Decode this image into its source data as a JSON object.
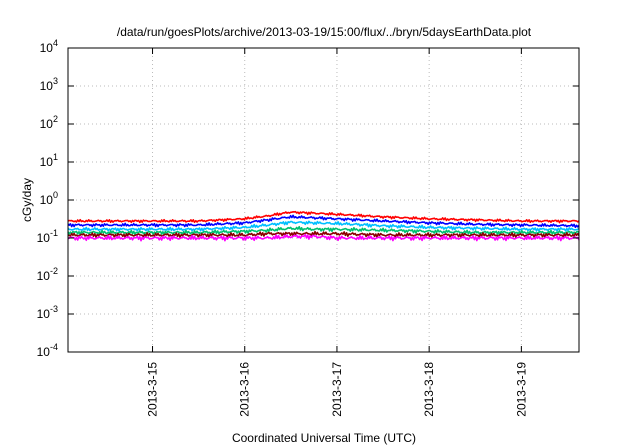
{
  "chart_data": {
    "type": "line",
    "title": "/data/run/goesPlots/archive/2013-03-19/15:00/flux/../bryn/5daysEarthData.plot",
    "xlabel": "Coordinated Universal Time (UTC)",
    "ylabel": "cGy/day",
    "yscale": "log",
    "ylim": [
      0.0001,
      10000
    ],
    "xlim": [
      "2013-03-14T02:00",
      "2013-03-19T15:00"
    ],
    "y_ticks": [
      {
        "base": "10",
        "exp": "4",
        "value": 10000
      },
      {
        "base": "10",
        "exp": "3",
        "value": 1000
      },
      {
        "base": "10",
        "exp": "2",
        "value": 100
      },
      {
        "base": "10",
        "exp": "1",
        "value": 10
      },
      {
        "base": "10",
        "exp": "0",
        "value": 1
      },
      {
        "base": "10",
        "exp": "-1",
        "value": 0.1
      },
      {
        "base": "10",
        "exp": "-2",
        "value": 0.01
      },
      {
        "base": "10",
        "exp": "-3",
        "value": 0.001
      },
      {
        "base": "10",
        "exp": "-4",
        "value": 0.0001
      }
    ],
    "x_ticks": [
      {
        "label": "2013-3-15",
        "value": "2013-03-15T00:00"
      },
      {
        "label": "2013-3-16",
        "value": "2013-03-16T00:00"
      },
      {
        "label": "2013-3-17",
        "value": "2013-03-17T00:00"
      },
      {
        "label": "2013-3-18",
        "value": "2013-03-18T00:00"
      },
      {
        "label": "2013-3-19",
        "value": "2013-03-19T00:00"
      }
    ],
    "grid": true,
    "series": [
      {
        "color": "#ff0000",
        "x": [
          "2013-03-14T02:00",
          "2013-03-14T12:00",
          "2013-03-15T00:00",
          "2013-03-15T12:00",
          "2013-03-16T00:00",
          "2013-03-16T06:00",
          "2013-03-16T12:00",
          "2013-03-16T18:00",
          "2013-03-17T00:00",
          "2013-03-17T12:00",
          "2013-03-18T00:00",
          "2013-03-18T12:00",
          "2013-03-19T00:00",
          "2013-03-19T15:00"
        ],
        "values": [
          0.28,
          0.28,
          0.28,
          0.28,
          0.32,
          0.38,
          0.48,
          0.45,
          0.42,
          0.36,
          0.32,
          0.3,
          0.28,
          0.28
        ]
      },
      {
        "color": "#0000ff",
        "x": [
          "2013-03-14T02:00",
          "2013-03-14T12:00",
          "2013-03-15T00:00",
          "2013-03-15T12:00",
          "2013-03-16T00:00",
          "2013-03-16T06:00",
          "2013-03-16T12:00",
          "2013-03-16T18:00",
          "2013-03-17T00:00",
          "2013-03-17T12:00",
          "2013-03-18T00:00",
          "2013-03-18T12:00",
          "2013-03-19T00:00",
          "2013-03-19T15:00"
        ],
        "values": [
          0.22,
          0.22,
          0.22,
          0.22,
          0.25,
          0.3,
          0.36,
          0.34,
          0.32,
          0.28,
          0.25,
          0.23,
          0.22,
          0.21
        ]
      },
      {
        "color": "#00bfff",
        "x": [
          "2013-03-14T02:00",
          "2013-03-14T12:00",
          "2013-03-15T00:00",
          "2013-03-15T12:00",
          "2013-03-16T00:00",
          "2013-03-16T06:00",
          "2013-03-16T12:00",
          "2013-03-16T18:00",
          "2013-03-17T00:00",
          "2013-03-17T12:00",
          "2013-03-18T00:00",
          "2013-03-18T12:00",
          "2013-03-19T00:00",
          "2013-03-19T15:00"
        ],
        "values": [
          0.17,
          0.17,
          0.17,
          0.17,
          0.19,
          0.22,
          0.26,
          0.25,
          0.24,
          0.21,
          0.19,
          0.18,
          0.17,
          0.17
        ]
      },
      {
        "color": "#00c070",
        "x": [
          "2013-03-14T02:00",
          "2013-03-14T12:00",
          "2013-03-15T00:00",
          "2013-03-15T12:00",
          "2013-03-16T00:00",
          "2013-03-16T06:00",
          "2013-03-16T12:00",
          "2013-03-16T18:00",
          "2013-03-17T00:00",
          "2013-03-17T12:00",
          "2013-03-18T00:00",
          "2013-03-18T12:00",
          "2013-03-19T00:00",
          "2013-03-19T15:00"
        ],
        "values": [
          0.14,
          0.14,
          0.14,
          0.14,
          0.15,
          0.16,
          0.18,
          0.17,
          0.17,
          0.16,
          0.15,
          0.14,
          0.14,
          0.14
        ]
      },
      {
        "color": "#8b0000",
        "x": [
          "2013-03-14T02:00",
          "2013-03-14T12:00",
          "2013-03-15T00:00",
          "2013-03-15T12:00",
          "2013-03-16T00:00",
          "2013-03-16T06:00",
          "2013-03-16T12:00",
          "2013-03-16T18:00",
          "2013-03-17T00:00",
          "2013-03-17T12:00",
          "2013-03-18T00:00",
          "2013-03-18T12:00",
          "2013-03-19T00:00",
          "2013-03-19T15:00"
        ],
        "values": [
          0.12,
          0.12,
          0.12,
          0.12,
          0.12,
          0.13,
          0.13,
          0.13,
          0.13,
          0.12,
          0.12,
          0.12,
          0.12,
          0.12
        ]
      },
      {
        "color": "#ff00ff",
        "x": [
          "2013-03-14T02:00",
          "2013-03-14T12:00",
          "2013-03-15T00:00",
          "2013-03-15T12:00",
          "2013-03-16T00:00",
          "2013-03-16T06:00",
          "2013-03-16T12:00",
          "2013-03-16T18:00",
          "2013-03-17T00:00",
          "2013-03-17T12:00",
          "2013-03-18T00:00",
          "2013-03-18T12:00",
          "2013-03-19T00:00",
          "2013-03-19T15:00"
        ],
        "values": [
          0.1,
          0.1,
          0.1,
          0.1,
          0.1,
          0.1,
          0.11,
          0.11,
          0.1,
          0.1,
          0.1,
          0.1,
          0.1,
          0.1
        ]
      }
    ]
  }
}
